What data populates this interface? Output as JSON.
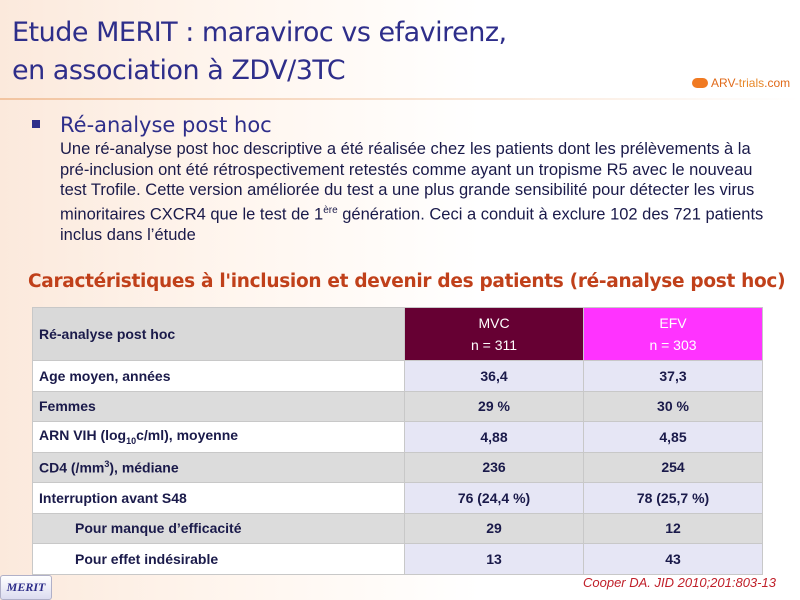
{
  "title": {
    "line1": "Etude MERIT : maraviroc vs efavirenz,",
    "line2": "en association à ZDV/3TC"
  },
  "logo": {
    "text_a": "ARV-",
    "text_b": "trials",
    "text_c": ".com"
  },
  "section": {
    "heading": "Ré-analyse post hoc",
    "para_before_sup": "Une ré-analyse post hoc descriptive a été réalisée chez les patients dont les prélèvements à la pré-inclusion ont été rétrospectivement retestés comme ayant un tropisme R5 avec le nouveau test Trofile. Cette version améliorée du test a une plus grande sensibilité pour détecter les virus minoritaires CXCR4 que le test de 1",
    "sup": "ère",
    "para_after_sup": " génération. Ceci a conduit à exclure 102 des 721 patients inclus dans l’étude"
  },
  "caption": "Caractéristiques à l'inclusion et devenir des patients (ré-analyse post hoc)",
  "table": {
    "header": {
      "label": "Ré-analyse post hoc",
      "mvc": "MVC",
      "mvc_n": "n = 311",
      "efv": "EFV",
      "efv_n": "n = 303"
    },
    "rows": [
      {
        "label": "Age moyen, années",
        "mvc": "36,4",
        "efv": "37,3"
      },
      {
        "label": "Femmes",
        "mvc": "29 %",
        "efv": "30 %"
      },
      {
        "label_a": "ARN VIH (log",
        "label_sub": "10",
        "label_b": "c/ml), moyenne",
        "mvc": "4,88",
        "efv": "4,85"
      },
      {
        "label_a": "CD4 (/mm",
        "label_sup": "3",
        "label_b": "), médiane",
        "mvc": "236",
        "efv": "254"
      },
      {
        "label": "Interruption avant S48",
        "mvc": "76 (24,4 %)",
        "efv": "78 (25,7 %)"
      },
      {
        "label": "Pour manque d’efficacité",
        "mvc": "29",
        "efv": "12"
      },
      {
        "label": "Pour effet indésirable",
        "mvc": "13",
        "efv": "43"
      }
    ]
  },
  "reference": "Cooper DA. JID 2010;201:803-13",
  "footer_badge": "MERIT"
}
